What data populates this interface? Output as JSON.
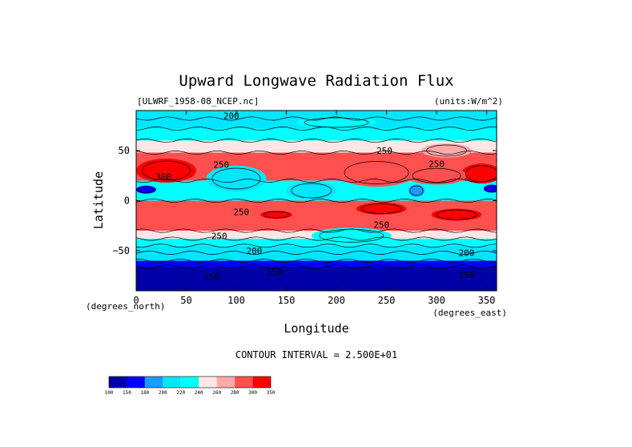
{
  "chart_data": {
    "type": "heatmap",
    "title": "Upward Longwave Radiation Flux",
    "dataset_label": "[ULWRF_1958-08_NCEP.nc]",
    "units_label": "(units:W/m^2)",
    "xlabel": "Longitude",
    "ylabel": "Latitude",
    "x_unit_label": "(degrees_east)",
    "y_unit_label": "(degrees_north)",
    "xlim": [
      0,
      360
    ],
    "ylim": [
      -90,
      90
    ],
    "x_ticks": [
      0,
      50,
      100,
      150,
      200,
      250,
      300,
      350
    ],
    "y_ticks": [
      50,
      0,
      -50
    ],
    "contour_interval_text": "CONTOUR INTERVAL = 2.500E+01",
    "contour_labels": [
      {
        "text": "200",
        "lon": 95,
        "lat": 85
      },
      {
        "text": "250",
        "lon": 248,
        "lat": 50
      },
      {
        "text": "250",
        "lon": 85,
        "lat": 36
      },
      {
        "text": "300",
        "lon": 27,
        "lat": 24
      },
      {
        "text": "250",
        "lon": 300,
        "lat": 37
      },
      {
        "text": "250",
        "lon": 105,
        "lat": -11
      },
      {
        "text": "250",
        "lon": 245,
        "lat": -24
      },
      {
        "text": "250",
        "lon": 83,
        "lat": -35
      },
      {
        "text": "200",
        "lon": 118,
        "lat": -50
      },
      {
        "text": "200",
        "lon": 330,
        "lat": -52
      },
      {
        "text": "150",
        "lon": 75,
        "lat": -76
      },
      {
        "text": "150",
        "lon": 138,
        "lat": -71
      },
      {
        "text": "150",
        "lon": 330,
        "lat": -74
      }
    ],
    "colorbar": {
      "levels": [
        100,
        150,
        180,
        200,
        220,
        240,
        260,
        280,
        300,
        350
      ],
      "colors": [
        "#0000a6",
        "#0000ff",
        "#1a9bff",
        "#00e6ff",
        "#00ffff",
        "#ffe6e6",
        "#ffaaaa",
        "#ff5050",
        "#ff0000"
      ]
    },
    "bands": [
      {
        "lat_top": 90,
        "lat_bottom": 82,
        "value": 205
      },
      {
        "lat_top": 82,
        "lat_bottom": 72,
        "value": 215
      },
      {
        "lat_top": 72,
        "lat_bottom": 60,
        "value": 230
      },
      {
        "lat_top": 60,
        "lat_bottom": 48,
        "value": 250
      },
      {
        "lat_top": 48,
        "lat_bottom": 20,
        "value": 280
      },
      {
        "lat_top": 20,
        "lat_bottom": 0,
        "value": 225
      },
      {
        "lat_top": 0,
        "lat_bottom": -30,
        "value": 285
      },
      {
        "lat_top": -30,
        "lat_bottom": -38,
        "value": 250
      },
      {
        "lat_top": -38,
        "lat_bottom": -45,
        "value": 230
      },
      {
        "lat_top": -45,
        "lat_bottom": -52,
        "value": 215
      },
      {
        "lat_top": -52,
        "lat_bottom": -60,
        "value": 200
      },
      {
        "lat_top": -60,
        "lat_bottom": -66,
        "value": 160
      },
      {
        "lat_top": -66,
        "lat_bottom": -90,
        "value": 130
      }
    ],
    "blobs": [
      {
        "lon": 30,
        "lat": 30,
        "rlon": 30,
        "rlat": 12,
        "value": 305
      },
      {
        "lon": 345,
        "lat": 27,
        "rlon": 20,
        "rlat": 10,
        "value": 300
      },
      {
        "lon": 240,
        "lat": 28,
        "rlon": 40,
        "rlat": 14,
        "value": 290
      },
      {
        "lon": 300,
        "lat": 25,
        "rlon": 30,
        "rlat": 9,
        "value": 290
      },
      {
        "lon": 140,
        "lat": -14,
        "rlon": 16,
        "rlat": 4,
        "value": 305
      },
      {
        "lon": 245,
        "lat": -8,
        "rlon": 25,
        "rlat": 6,
        "value": 300
      },
      {
        "lon": 320,
        "lat": -14,
        "rlon": 25,
        "rlat": 6,
        "value": 300
      },
      {
        "lon": 100,
        "lat": 22,
        "rlon": 30,
        "rlat": 13,
        "value": 210
      },
      {
        "lon": 175,
        "lat": 10,
        "rlon": 25,
        "rlat": 9,
        "value": 215
      },
      {
        "lon": 10,
        "lat": 11,
        "rlon": 10,
        "rlat": 4,
        "value": 175
      },
      {
        "lon": 355,
        "lat": 12,
        "rlon": 8,
        "rlat": 4,
        "value": 175
      },
      {
        "lon": 280,
        "lat": 10,
        "rlon": 8,
        "rlat": 6,
        "value": 190
      },
      {
        "lon": 215,
        "lat": -35,
        "rlon": 40,
        "rlat": 8,
        "value": 230
      },
      {
        "lon": 200,
        "lat": 78,
        "rlon": 40,
        "rlat": 6,
        "value": 230
      },
      {
        "lon": 310,
        "lat": 50,
        "rlon": 25,
        "rlat": 7,
        "value": 270
      }
    ]
  }
}
